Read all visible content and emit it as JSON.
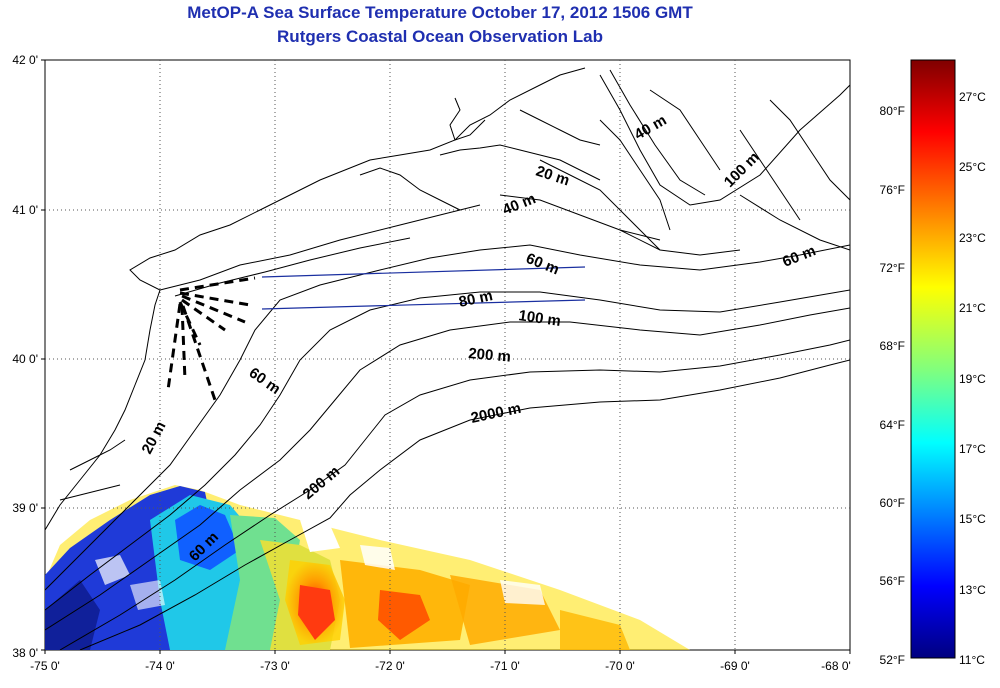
{
  "title": {
    "line1": "MetOP-A Sea Surface Temperature October 17, 2012 1506 GMT",
    "line2": "Rutgers Coastal Ocean Observation Lab"
  },
  "axes": {
    "x_ticks": [
      "-75 0'",
      "-74 0'",
      "-73 0'",
      "-72 0'",
      "-71 0'",
      "-70 0'",
      "-69 0'",
      "-68 0'"
    ],
    "y_ticks": [
      "42 0'",
      "41 0'",
      "40 0'",
      "39 0'",
      "38 0'"
    ],
    "grid": true
  },
  "depth_labels": [
    "20 m",
    "40 m",
    "100 m",
    "40 m",
    "60 m",
    "60 m",
    "80 m",
    "100 m",
    "200 m",
    "60 m",
    "20 m",
    "2000 m",
    "200 m",
    "60 m"
  ],
  "colorbar": {
    "fahrenheit": [
      "80°F",
      "76°F",
      "72°F",
      "68°F",
      "64°F",
      "60°F",
      "56°F",
      "52°F"
    ],
    "celsius": [
      "27°C",
      "25°C",
      "23°C",
      "21°C",
      "19°C",
      "17°C",
      "15°C",
      "13°C",
      "11°C"
    ],
    "colors": [
      "#00007f",
      "#0000ff",
      "#007fff",
      "#00ffff",
      "#7fff7f",
      "#ffff00",
      "#ff7f00",
      "#ff0000",
      "#7f0000"
    ]
  },
  "colors": {
    "title": "#1f2fb0",
    "transect": "#1a2fa0"
  }
}
